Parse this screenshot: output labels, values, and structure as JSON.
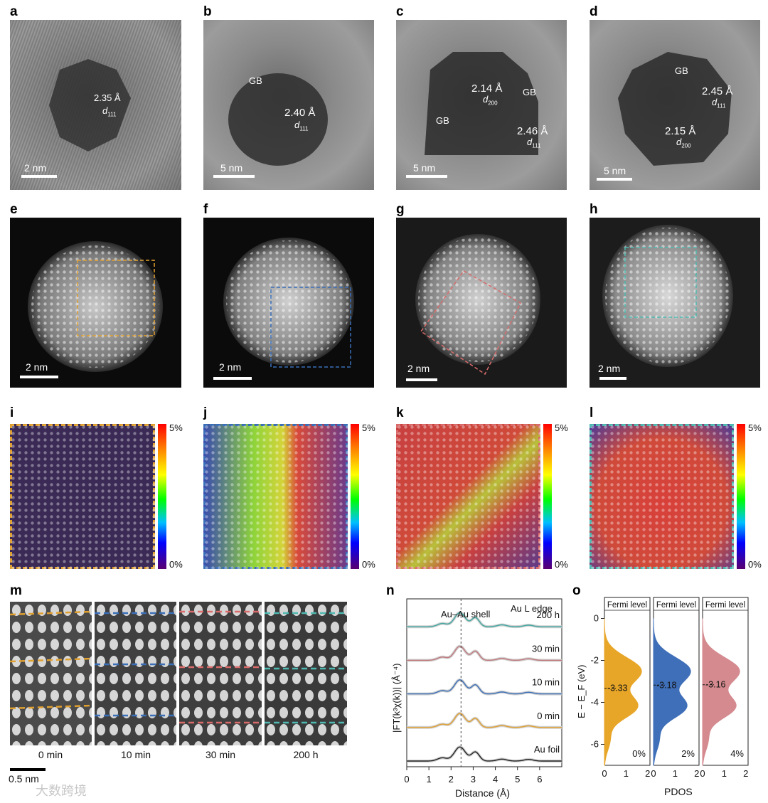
{
  "panels": {
    "a": {
      "label": "a",
      "scale": "2 nm",
      "notes": [
        {
          "text": "2.35 Å"
        },
        {
          "text": "d",
          "sub": "111"
        }
      ]
    },
    "b": {
      "label": "b",
      "scale": "5 nm",
      "notes": [
        {
          "text": "GB"
        },
        {
          "text": "2.40 Å"
        },
        {
          "text": "d",
          "sub": "111"
        }
      ]
    },
    "c": {
      "label": "c",
      "scale": "5 nm",
      "notes": [
        {
          "text": "2.14 Å"
        },
        {
          "text": "GB"
        },
        {
          "text": "d",
          "sub": "200"
        },
        {
          "text": "GB"
        },
        {
          "text": "2.46 Å"
        },
        {
          "text": "d",
          "sub": "111"
        }
      ]
    },
    "d": {
      "label": "d",
      "scale": "5 nm",
      "notes": [
        {
          "text": "GB"
        },
        {
          "text": "2.45 Å"
        },
        {
          "text": "d",
          "sub": "111"
        },
        {
          "text": "2.15 Å"
        },
        {
          "text": "d",
          "sub": "200"
        }
      ]
    },
    "e": {
      "label": "e",
      "scale": "2 nm",
      "box_color": "#e0a030"
    },
    "f": {
      "label": "f",
      "scale": "2 nm",
      "box_color": "#3a6fb8"
    },
    "g": {
      "label": "g",
      "scale": "2 nm",
      "box_color": "#d96b6b"
    },
    "h": {
      "label": "h",
      "scale": "2 nm",
      "box_color": "#4fb8b0"
    },
    "i": {
      "label": "i",
      "cb_max": "5%",
      "cb_min": "0%",
      "frame_color": "#e0a030"
    },
    "j": {
      "label": "j",
      "cb_max": "5%",
      "cb_min": "0%",
      "frame_color": "#3a6fb8"
    },
    "k": {
      "label": "k",
      "cb_max": "5%",
      "cb_min": "0%",
      "frame_color": "#d96b6b"
    },
    "l": {
      "label": "l",
      "cb_max": "5%",
      "cb_min": "0%",
      "frame_color": "#4fb8b0"
    },
    "m": {
      "label": "m",
      "times": [
        "0 min",
        "10 min",
        "30 min",
        "200 h"
      ],
      "scale": "0.5 nm",
      "colors": [
        "#e0a030",
        "#3a6fb8",
        "#d96b6b",
        "#4fb8b0"
      ]
    },
    "n": {
      "label": "n"
    },
    "o": {
      "label": "o"
    }
  },
  "chart_data": [
    {
      "type": "line",
      "panel": "n",
      "title": "",
      "xlabel": "Distance (Å)",
      "ylabel": "|FT(k³χ(k))| (Å⁻⁴)",
      "xlim": [
        0,
        7
      ],
      "xticks": [
        "0",
        "1",
        "2",
        "3",
        "4",
        "5",
        "6"
      ],
      "annotations": [
        "Au–Au shell",
        "Au L edge"
      ],
      "series": [
        {
          "name": "200 h",
          "color": "#3fa7a0"
        },
        {
          "name": "30 min",
          "color": "#c0787c"
        },
        {
          "name": "10 min",
          "color": "#3a6fb8"
        },
        {
          "name": "0 min",
          "color": "#e0a030"
        },
        {
          "name": "Au foil",
          "color": "#222222"
        }
      ],
      "peak_x": 2.45
    },
    {
      "type": "area",
      "panel": "o",
      "ylabel": "E − E_F (eV)",
      "xlabel": "PDOS",
      "ylim": [
        -7,
        1
      ],
      "yticks": [
        "0",
        "-2",
        "-4",
        "-6"
      ],
      "xticks": [
        "0",
        "1",
        "2"
      ],
      "fermi_label": "Fermi level",
      "series": [
        {
          "name": "0%",
          "color": "#e8a628",
          "d_band_center": "-3.33"
        },
        {
          "name": "2%",
          "color": "#3f6fb8",
          "d_band_center": "-3.18"
        },
        {
          "name": "4%",
          "color": "#d48a8e",
          "d_band_center": "-3.16"
        }
      ]
    }
  ],
  "watermark": "大数跨境"
}
